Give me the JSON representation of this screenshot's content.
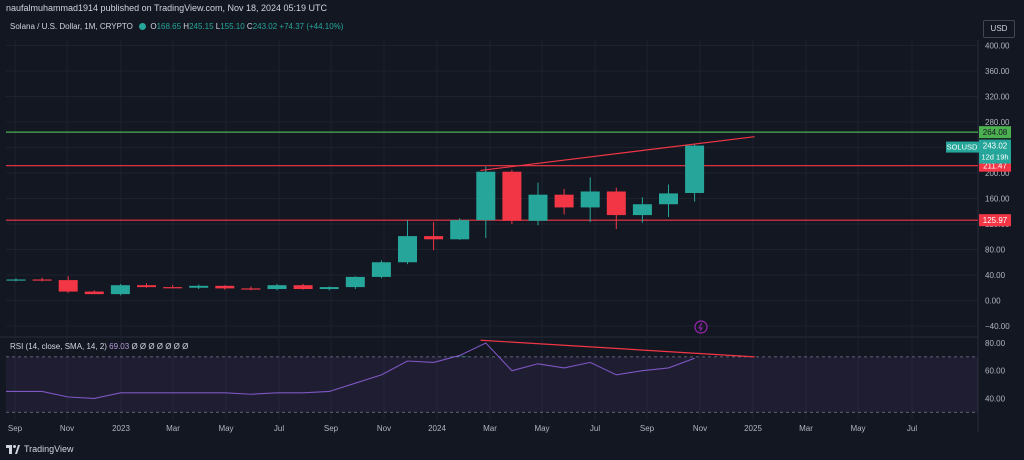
{
  "header": {
    "published": "naufalmuhammad1914 published on TradingView.com, Nov 18, 2024 05:19 UTC"
  },
  "legend": {
    "symbol": "Solana / U.S. Dollar, 1M, CRYPTO",
    "o_label": "O",
    "o_value": "168.65",
    "h_label": "H",
    "h_value": "245.15",
    "l_label": "L",
    "l_value": "155.10",
    "c_label": "C",
    "c_value": "243.02",
    "change": "+74.37 (+44.10%)"
  },
  "rsi_legend": {
    "label": "RSI (14, close, SMA, 14, 2)",
    "value": "69.03",
    "placeholders": "Ø Ø Ø Ø Ø Ø Ø"
  },
  "currency_button": "USD",
  "footer": {
    "brand": "TradingView"
  },
  "colors": {
    "background": "#131722",
    "bull": "#26a69a",
    "bear": "#f23645",
    "resistance_green": "#4caf50",
    "rsi_line": "#7e57c2",
    "grid": "#1e222d"
  },
  "chart_data": [
    {
      "type": "candlestick",
      "title": "Solana / U.S. Dollar, 1M, CRYPTO",
      "x_labels": [
        "Sep",
        "Nov",
        "2023",
        "Mar",
        "May",
        "Jul",
        "Sep",
        "Nov",
        "2024",
        "Mar",
        "May",
        "Jul",
        "Sep",
        "Nov",
        "2025",
        "Mar",
        "May",
        "Jul"
      ],
      "y_ticks": [
        -40,
        0,
        40,
        80,
        120,
        160,
        200,
        240,
        280,
        320,
        360,
        400
      ],
      "y_tick_labels": [
        "−40.00",
        "0.00",
        "40.00",
        "80.00",
        "120.00",
        "160.00",
        "200.00",
        "240.00",
        "280.00",
        "320.00",
        "360.00",
        "400.00"
      ],
      "ylim": [
        -50,
        420
      ],
      "candles": [
        {
          "o": 32,
          "h": 35,
          "l": 30,
          "c": 33
        },
        {
          "o": 33,
          "h": 36,
          "l": 30,
          "c": 32
        },
        {
          "o": 32,
          "h": 38,
          "l": 12,
          "c": 14
        },
        {
          "o": 14,
          "h": 16,
          "l": 10,
          "c": 10
        },
        {
          "o": 10,
          "h": 26,
          "l": 8,
          "c": 24
        },
        {
          "o": 24,
          "h": 27,
          "l": 20,
          "c": 21
        },
        {
          "o": 21,
          "h": 24,
          "l": 19,
          "c": 20
        },
        {
          "o": 20,
          "h": 25,
          "l": 18,
          "c": 23
        },
        {
          "o": 23,
          "h": 24,
          "l": 17,
          "c": 19
        },
        {
          "o": 19,
          "h": 22,
          "l": 16,
          "c": 18
        },
        {
          "o": 18,
          "h": 26,
          "l": 16,
          "c": 24
        },
        {
          "o": 24,
          "h": 26,
          "l": 17,
          "c": 18
        },
        {
          "o": 18,
          "h": 22,
          "l": 16,
          "c": 21
        },
        {
          "o": 21,
          "h": 38,
          "l": 18,
          "c": 37
        },
        {
          "o": 37,
          "h": 63,
          "l": 35,
          "c": 60
        },
        {
          "o": 60,
          "h": 126,
          "l": 57,
          "c": 101
        },
        {
          "o": 101,
          "h": 123,
          "l": 79,
          "c": 96
        },
        {
          "o": 96,
          "h": 129,
          "l": 95,
          "c": 126
        },
        {
          "o": 126,
          "h": 210,
          "l": 98,
          "c": 202
        },
        {
          "o": 202,
          "h": 205,
          "l": 120,
          "c": 125
        },
        {
          "o": 125,
          "h": 185,
          "l": 118,
          "c": 166
        },
        {
          "o": 166,
          "h": 175,
          "l": 135,
          "c": 146
        },
        {
          "o": 146,
          "h": 193,
          "l": 123,
          "c": 171
        },
        {
          "o": 171,
          "h": 177,
          "l": 112,
          "c": 134
        },
        {
          "o": 134,
          "h": 162,
          "l": 122,
          "c": 151
        },
        {
          "o": 151,
          "h": 182,
          "l": 131,
          "c": 168
        },
        {
          "o": 168.65,
          "h": 245.15,
          "l": 155.1,
          "c": 243.02
        }
      ],
      "horizontal_levels": [
        {
          "value": 264.08,
          "label": "264.08",
          "color": "#4caf50"
        },
        {
          "value": 211.47,
          "label": "211.47",
          "color": "#f23645"
        },
        {
          "value": 125.97,
          "label": "125.97",
          "color": "#f23645"
        }
      ],
      "trendline": {
        "from_index": 17.8,
        "from_value": 204,
        "to_index": 28.3,
        "to_value": 257
      },
      "last_price_tag": {
        "symbol": "SOLUSD",
        "value": "243.02",
        "countdown": "12d 19h"
      }
    },
    {
      "type": "line",
      "title": "RSI (14, close, SMA, 14, 2)",
      "y_ticks": [
        40,
        60,
        80
      ],
      "y_tick_labels": [
        "40.00",
        "60.00",
        "80.00"
      ],
      "band": [
        30,
        70
      ],
      "values": [
        45,
        45,
        41,
        40,
        44,
        44,
        44,
        44,
        44,
        43,
        44,
        44,
        45,
        51,
        57,
        67,
        66,
        71,
        80,
        60,
        65,
        62,
        66,
        57,
        60,
        62,
        69
      ],
      "divergence_line": {
        "from_index": 17.8,
        "from_value": 82,
        "to_index": 28.3,
        "to_value": 70
      }
    }
  ]
}
